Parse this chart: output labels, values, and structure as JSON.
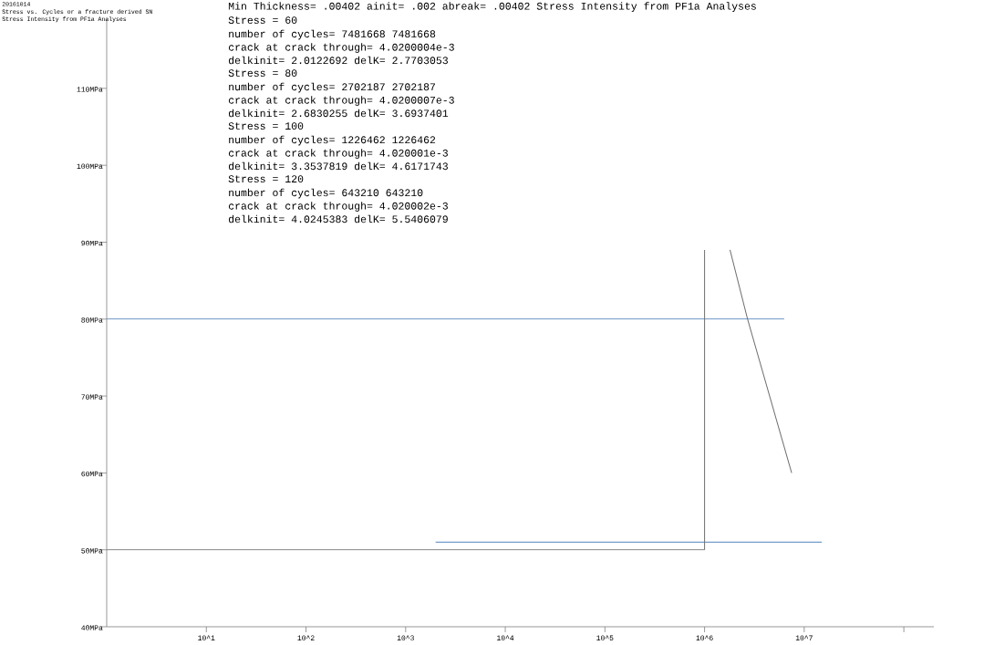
{
  "chart_data": {
    "type": "line",
    "title": "20161014",
    "subtitle": "Stress vs. Cycles or a fracture derived SN",
    "annotations": [
      "Stress Intensity from PF1a Analyses",
      "Min Thickness= .00402 ainit= .002 abreak= .00402 Stress Intensity from PF1a Analyses",
      "Stress = 60",
      "number of cycles= 7481668 7481668",
      "crack at crack through= 4.0200004e-3",
      "delkinit= 2.0122692 delK= 2.7703053",
      "Stress = 80",
      "number of cycles= 2702187 2702187",
      "crack at crack through= 4.0200007e-3",
      "delkinit= 2.6830255 delK= 3.6937401",
      "Stress = 100",
      "number of cycles= 1226462 1226462",
      "crack at crack through= 4.020001e-3",
      "delkinit= 3.3537819 delK= 4.6171743",
      "Stress = 120",
      "number of cycles= 643210 643210",
      "crack at crack through= 4.020002e-3",
      "delkinit= 4.0245383 delK= 5.5406079"
    ],
    "log": "x",
    "xlim": [
      1,
      200000000
    ],
    "ylim": [
      40,
      119
    ],
    "xticks": [
      {
        "value": 10,
        "label": "10^1"
      },
      {
        "value": 100,
        "label": "10^2"
      },
      {
        "value": 1000,
        "label": "10^3"
      },
      {
        "value": 10000,
        "label": "10^4"
      },
      {
        "value": 100000,
        "label": "10^5"
      },
      {
        "value": 1000000,
        "label": "10^6"
      },
      {
        "value": 10000000,
        "label": "10^7"
      },
      {
        "value": 100000000,
        "label": null
      }
    ],
    "yticks": [
      {
        "value": 40,
        "label": "40MPa"
      },
      {
        "value": 50,
        "label": "50MPa"
      },
      {
        "value": 60,
        "label": "60MPa"
      },
      {
        "value": 70,
        "label": "70MPa"
      },
      {
        "value": 80,
        "label": "80MPa"
      },
      {
        "value": 90,
        "label": "90MPa"
      },
      {
        "value": 100,
        "label": "100MPa"
      },
      {
        "value": 110,
        "label": "110MPa"
      }
    ],
    "series": [
      {
        "color": "#6e6e6e",
        "x": [
          1800000,
          2702187,
          7481668
        ],
        "values": [
          89,
          80,
          60
        ]
      },
      {
        "color": "#4f81bd",
        "x": [
          1,
          6300000
        ],
        "values": [
          80,
          80
        ]
      },
      {
        "color": "#4f81bd",
        "x": [
          2000,
          15000000
        ],
        "values": [
          51,
          51
        ]
      },
      {
        "color": "#6e6e6e",
        "x": [
          1,
          1000000
        ],
        "values": [
          50,
          50
        ]
      },
      {
        "color": "#6e6e6e",
        "x": [
          1000000,
          1000000
        ],
        "values": [
          50,
          89
        ]
      }
    ]
  }
}
